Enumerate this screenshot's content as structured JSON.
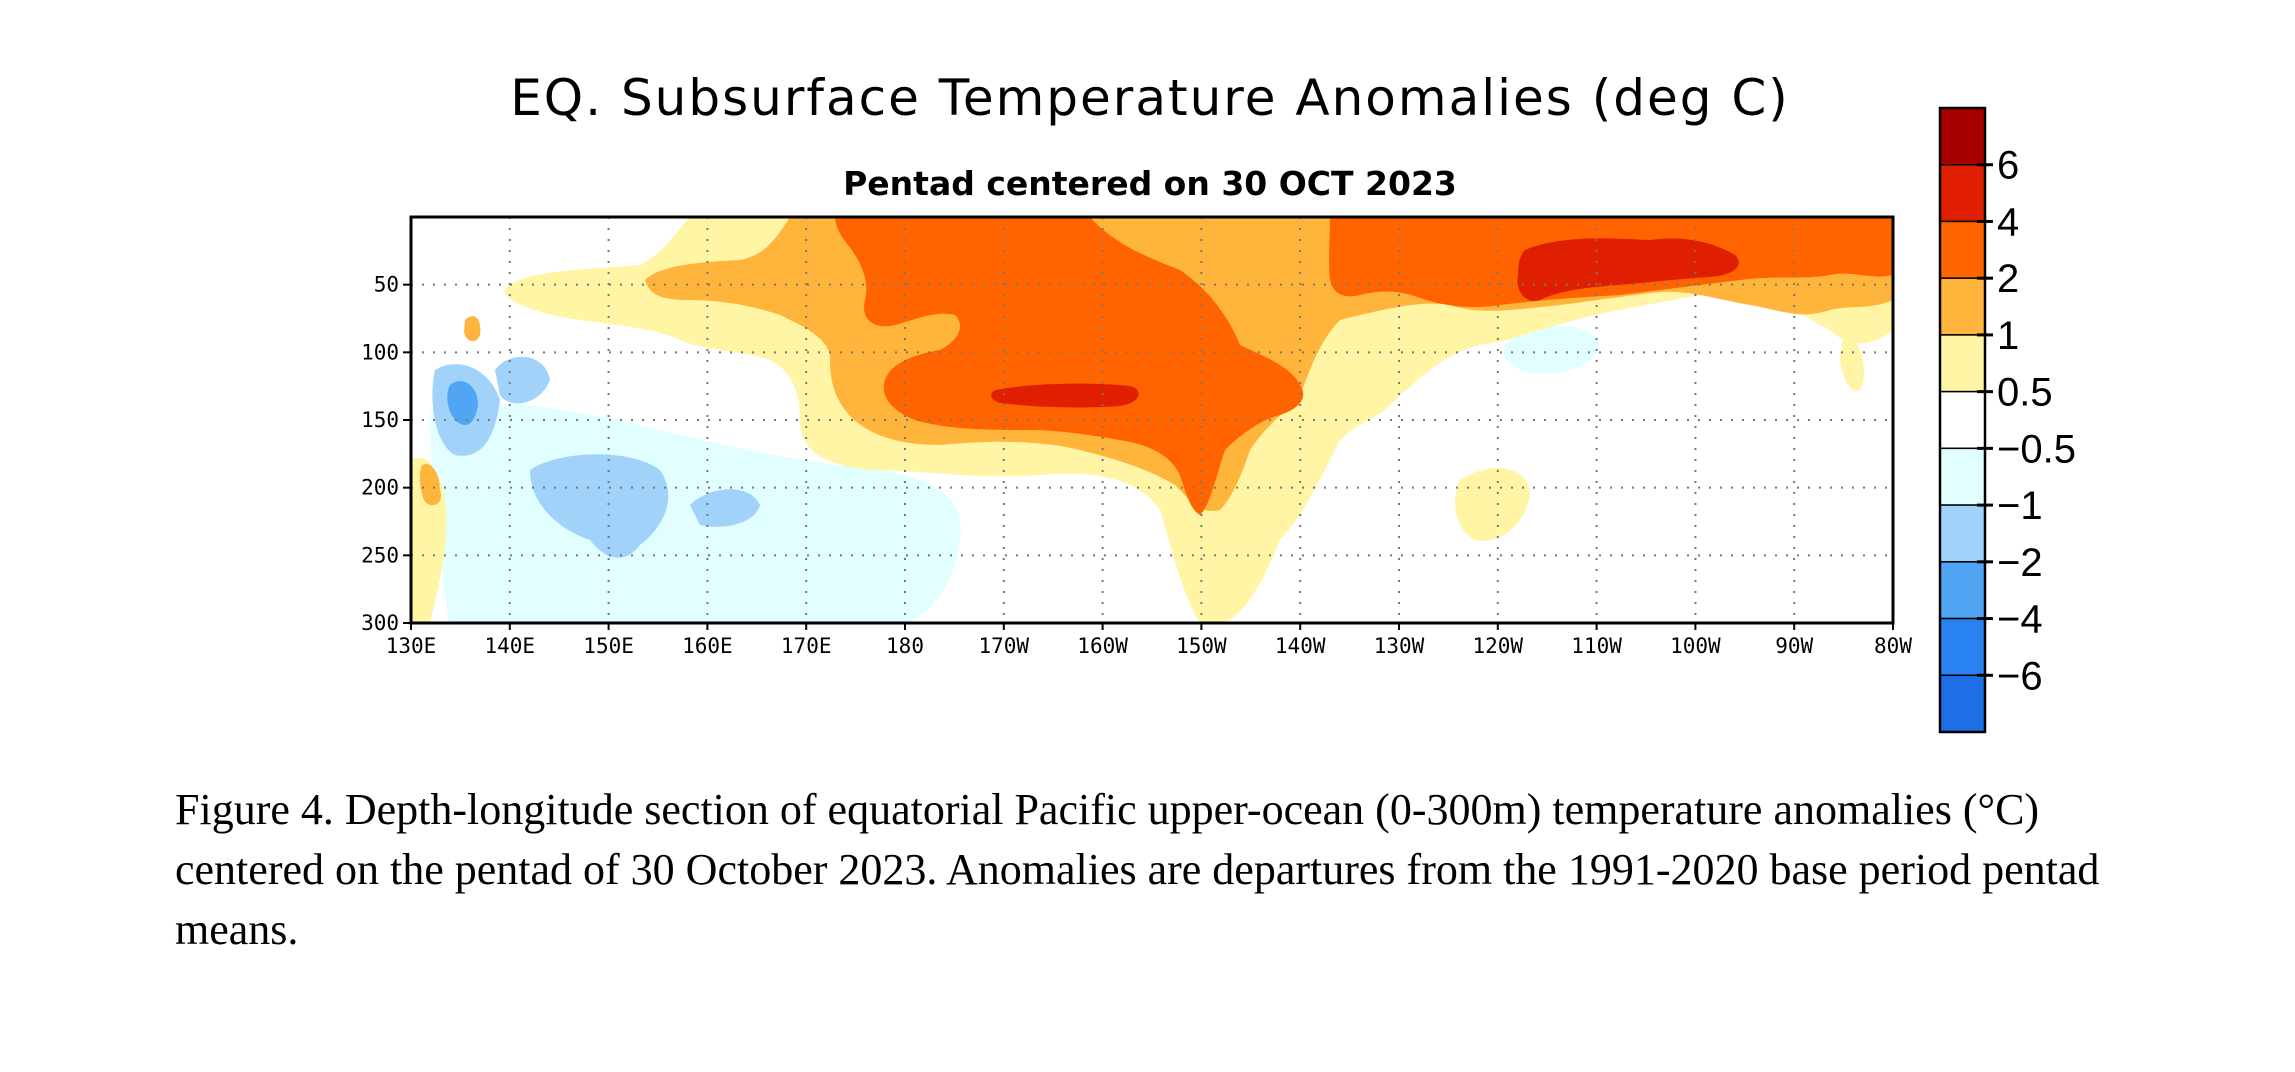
{
  "chart_data": {
    "type": "heatmap",
    "title": "EQ. Subsurface Temperature Anomalies (deg C)",
    "subtitle": "Pentad centered on 30 OCT 2023",
    "x_ticks": [
      "130E",
      "140E",
      "150E",
      "160E",
      "170E",
      "180",
      "170W",
      "160W",
      "150W",
      "140W",
      "130W",
      "120W",
      "110W",
      "100W",
      "90W",
      "80W"
    ],
    "y_ticks": [
      "50",
      "100",
      "150",
      "200",
      "250",
      "300"
    ],
    "y_tick_values": [
      50,
      100,
      150,
      200,
      250,
      300
    ],
    "ylim": [
      0,
      300
    ],
    "y_reversed": true,
    "grid": "dotted",
    "colorbar": {
      "labels": [
        "6",
        "4",
        "2",
        "1",
        "0.5",
        "−0.5",
        "−1",
        "−2",
        "−4",
        "−6"
      ],
      "colors": [
        "#a80000",
        "#e01e00",
        "#ff6400",
        "#ffb43c",
        "#fff5a5",
        "#ffffff",
        "#e1ffff",
        "#a0d2fa",
        "#50a5f5",
        "#2882f0",
        "#1e6ee6"
      ]
    },
    "anomaly_features": [
      {
        "longitude": "170W-160W",
        "depth_m": 130,
        "anomaly_c": 4
      },
      {
        "longitude": "110W-100W",
        "depth_m": 30,
        "anomaly_c": 4
      },
      {
        "longitude": "135E",
        "depth_m": 140,
        "anomaly_c": -2
      },
      {
        "longitude": "145E-155E",
        "depth_m": 200,
        "anomaly_c": -1
      }
    ]
  },
  "caption": "Figure 4. Depth-longitude section of equatorial Pacific upper-ocean (0-300m) temperature anomalies (°C) centered on the pentad of 30 October 2023. Anomalies are departures from the 1991-2020 base period pentad means."
}
